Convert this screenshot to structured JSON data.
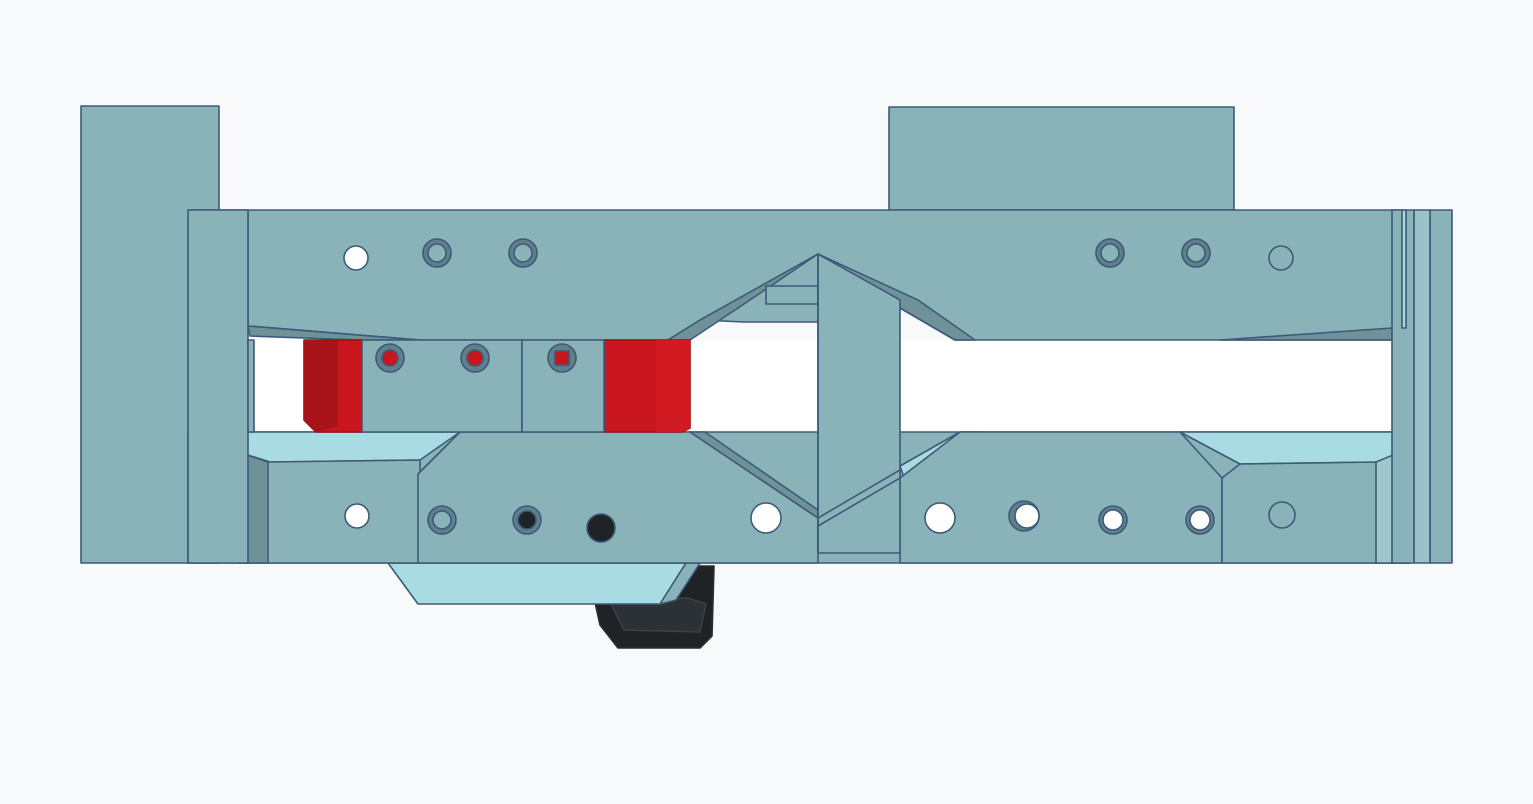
{
  "viewport": {
    "background": "#f8f9fa"
  },
  "model": {
    "parts": [
      "left-upright-part",
      "top-right-block-part",
      "main-frame-part",
      "upper-rail-part",
      "lower-rail-part",
      "center-crossbar-part",
      "red-spacer-left-part",
      "red-spacer-right-part",
      "bottom-clip-part",
      "bottom-hook-part"
    ],
    "colors": {
      "body": "#8ab3b9",
      "body_dark": "#6f9298",
      "light_face": "#a9dbe3",
      "outline": "#3d5a78",
      "red": "#c9161e",
      "red_dark": "#9e1016",
      "black": "#1f2326",
      "hole": "#ffffff"
    }
  }
}
